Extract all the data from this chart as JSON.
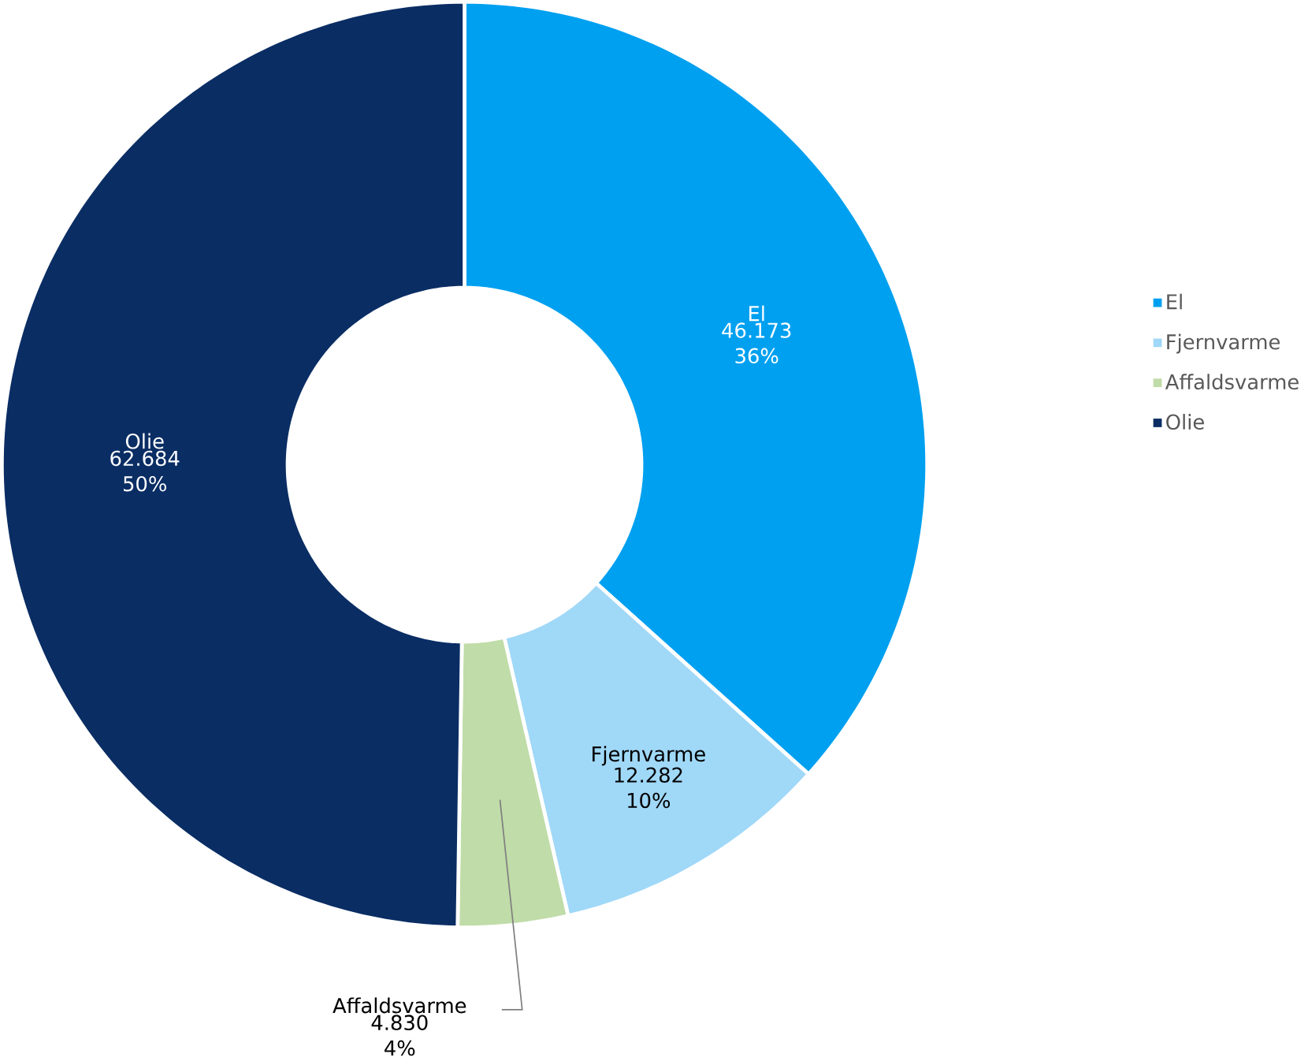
{
  "chart_data": {
    "type": "donut",
    "categories": [
      "El",
      "Fjernvarme",
      "Affaldsvarme",
      "Olie"
    ],
    "values": [
      46173,
      12282,
      4830,
      62684
    ],
    "colors": [
      "#00a0f0",
      "#a0d8f8",
      "#c0dca8",
      "#0a2d64"
    ],
    "value_labels": [
      "46.173 36%",
      "12.282 10%",
      "4.830 4%",
      "62.684 50%"
    ],
    "legend": "right"
  }
}
